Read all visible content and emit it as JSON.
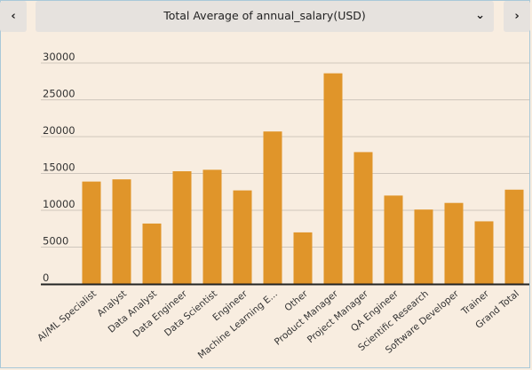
{
  "toolbar": {
    "prev_icon": "chevron-left-icon",
    "next_icon": "chevron-right-icon",
    "prev_glyph": "‹",
    "next_glyph": "›",
    "measure_label": "Total Average of annual_salary(USD)",
    "caret_glyph": "⌄"
  },
  "colors": {
    "bar": "#e0952a",
    "background": "#f8ede0",
    "grid": "#cfc7bd",
    "axis": "#222222"
  },
  "chart_data": {
    "type": "bar",
    "title": "",
    "xlabel": "",
    "ylabel": "",
    "categories": [
      "AI/ML Specialist",
      "Analyst",
      "Data Analyst",
      "Data Engineer",
      "Data Scientist",
      "Engineer",
      "Machine Learning E...",
      "Other",
      "Product Manager",
      "Project Manager",
      "QA Engineer",
      "Scientific Research",
      "Software Developer",
      "Trainer",
      "Grand Total"
    ],
    "values": [
      13900,
      14200,
      8200,
      15300,
      15500,
      12700,
      20700,
      7000,
      28600,
      17900,
      12000,
      10100,
      11000,
      8500,
      12800
    ],
    "ylim": [
      0,
      30000
    ],
    "yticks": [
      0,
      5000,
      10000,
      15000,
      20000,
      25000,
      30000
    ],
    "ytick_labels": [
      "0",
      "5000",
      "10000",
      "15000",
      "20000",
      "25000",
      "30000"
    ],
    "grid": true,
    "legend": "none"
  }
}
